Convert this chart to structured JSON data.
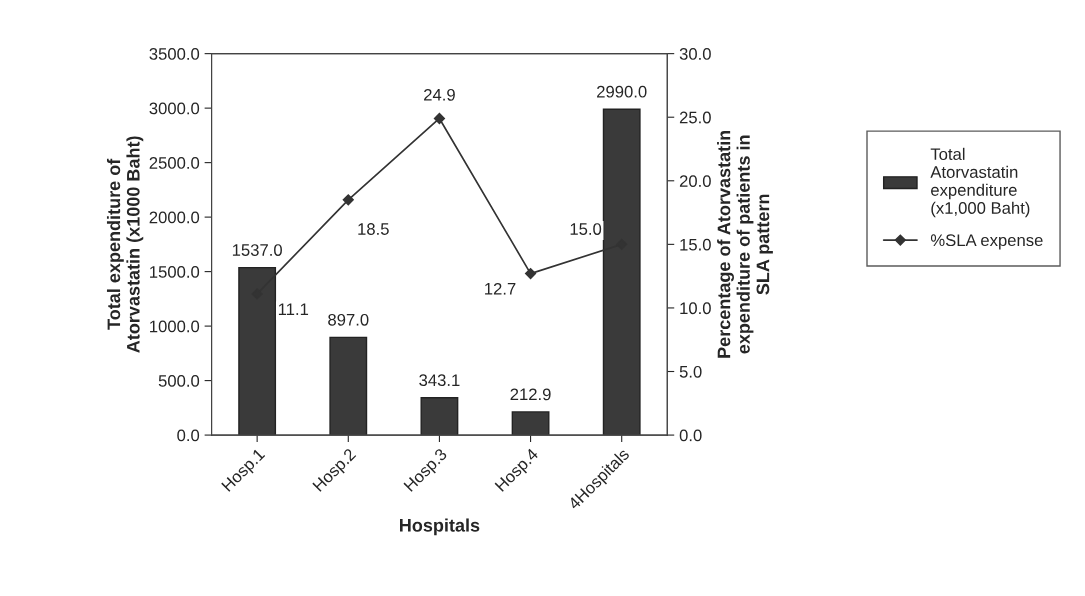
{
  "chart_data": {
    "type": "bar",
    "categories": [
      "Hosp.1",
      "Hosp.2",
      "Hosp.3",
      "Hosp.4",
      "4Hospitals"
    ],
    "xlabel": "Hospitals",
    "ylabel": "Total expenditure of\nAtorvastatin (x1000 Baht)",
    "y2label": "Percentage of Atorvastatin\nexpenditure of patients in\nSLA pattern",
    "series": [
      {
        "name": "Total Atorvastatin expenditure (x1,000 Baht)",
        "color": "#3a3a3a",
        "values": [
          1537,
          897,
          343.1,
          212.9,
          2990
        ],
        "value_labels": [
          "1537.0",
          "897.0",
          "343.1",
          "212.9",
          "2990.0"
        ]
      },
      {
        "name": "%SLA expense",
        "type": "line",
        "axis": "y2",
        "color": "#333333",
        "marker": "diamond",
        "values": [
          11.1,
          18.5,
          24.9,
          12.7,
          15
        ],
        "value_labels": [
          "11.1",
          "18.5",
          "24.9",
          "12.7",
          "15.0"
        ]
      }
    ],
    "ylim": [
      0,
      3500
    ],
    "yticks": [
      {
        "value": 0,
        "label": "0.0"
      },
      {
        "value": 500,
        "label": "500.0"
      },
      {
        "value": 1000,
        "label": "1000.0"
      },
      {
        "value": 1500,
        "label": "1500.0"
      },
      {
        "value": 2000,
        "label": "2000.0"
      },
      {
        "value": 2500,
        "label": "2500.0"
      },
      {
        "value": 3000,
        "label": "3000.0"
      },
      {
        "value": 3500,
        "label": "3500.0"
      }
    ],
    "y2lim": [
      0,
      30
    ],
    "y2ticks": [
      {
        "value": 0,
        "label": "0.0"
      },
      {
        "value": 5,
        "label": "5.0"
      },
      {
        "value": 10,
        "label": "10.0"
      },
      {
        "value": 15,
        "label": "15.0"
      },
      {
        "value": 20,
        "label": "20.0"
      },
      {
        "value": 25,
        "label": "25.0"
      },
      {
        "value": 30,
        "label": "30.0"
      }
    ],
    "grid": false,
    "legend": "right"
  }
}
